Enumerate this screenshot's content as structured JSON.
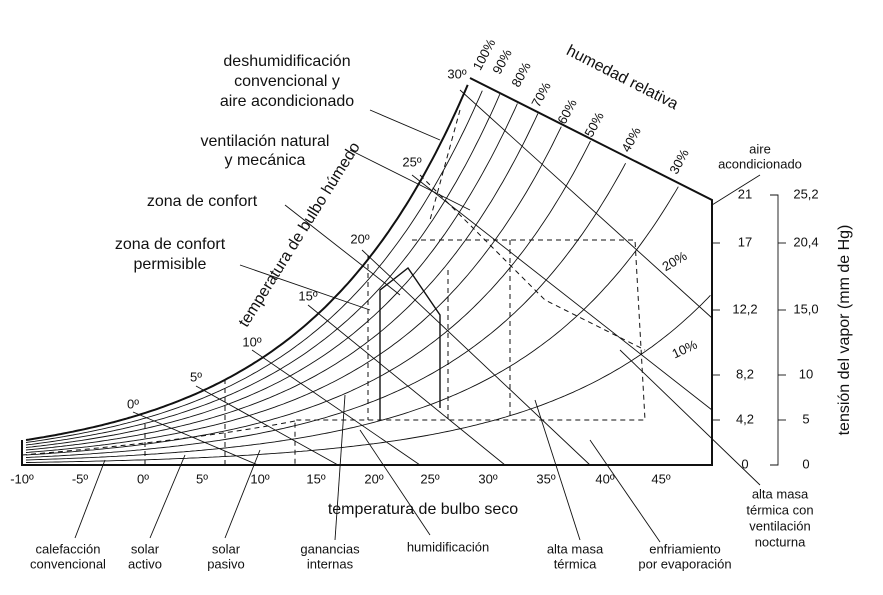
{
  "rh_title": "humedad relativa",
  "rh_labels": [
    "100%",
    "90%",
    "80%",
    "70%",
    "60%",
    "50%",
    "40%",
    "30%",
    "20%",
    "10%"
  ],
  "wet_bulb_title": "temperatura de bulbo húmedo",
  "wet_bulb_labels": [
    "0º",
    "5º",
    "10º",
    "15º",
    "20º",
    "25º",
    "30º"
  ],
  "dry_bulb_title": "temperatura de bulbo seco",
  "dry_bulb_labels": [
    "-10º",
    "-5º",
    "0º",
    "5º",
    "10º",
    "15º",
    "20º",
    "25º",
    "30º",
    "35º",
    "40º",
    "45º"
  ],
  "humidity_ratio_labels": [
    "21",
    "17",
    "12,2",
    "8,2",
    "4,2",
    "0"
  ],
  "vapor_pressure_title": "tensión del vapor (mm de Hg)",
  "vapor_pressure_labels": [
    "25,2",
    "20,4",
    "15,0",
    "10",
    "5",
    "0"
  ],
  "zones": {
    "dehumidification": [
      "deshumidificación",
      "convencional y",
      "aire acondicionado"
    ],
    "ventilation": [
      "ventilación natural",
      "y mecánica"
    ],
    "comfort": [
      "zona de confort"
    ],
    "comfort_permissible": [
      "zona de confort",
      "permisible"
    ],
    "air_conditioning": [
      "aire",
      "acondicionado"
    ],
    "high_mass_night": [
      "alta masa",
      "térmica con",
      "ventilación",
      "nocturna"
    ],
    "evaporative": [
      "enfriamiento",
      "por evaporación"
    ],
    "high_mass": [
      "alta masa",
      "térmica"
    ],
    "humidification": [
      "humidificación"
    ],
    "internal_gains": [
      "ganancias",
      "internas"
    ],
    "passive_solar": [
      "solar",
      "pasivo"
    ],
    "active_solar": [
      "solar",
      "activo"
    ],
    "conventional_heating": [
      "calefacción",
      "convencional"
    ]
  }
}
